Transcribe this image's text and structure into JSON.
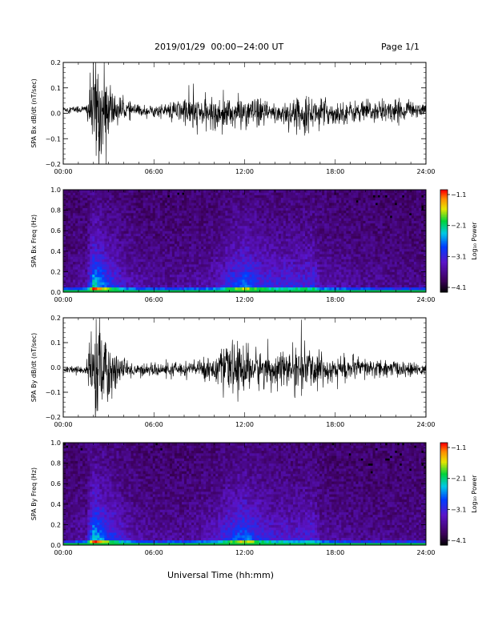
{
  "header": {
    "title": "2019/01/29  00:00−24:00 UT",
    "page": "Page 1/1"
  },
  "xlabel": "Universal Time (hh:mm)",
  "x_ticks": [
    "00:00",
    "06:00",
    "12:00",
    "18:00",
    "24:00"
  ],
  "chart_data": [
    {
      "type": "line",
      "ylabel": "SPA Bx dB/dt (nT/sec)",
      "x_range_hours": [
        0,
        24
      ],
      "ylim": [
        -0.2,
        0.2
      ],
      "y_ticks": [
        "0.2",
        "0.1",
        "0.0",
        "−0.1",
        "−0.2"
      ],
      "y_tick_values": [
        0.2,
        0.1,
        0.0,
        -0.1,
        -0.2
      ],
      "series": [
        {
          "x_hours": [
            0,
            1.5,
            2.0,
            2.3,
            2.6,
            3.0,
            3.5,
            4.0,
            5.0,
            6.0,
            7.0,
            8.0,
            8.5,
            9.0,
            10.0,
            11.0,
            12.0,
            13.0,
            14.0,
            15.0,
            16.0,
            17.0,
            18.0,
            19.0,
            20.0,
            21.0,
            22.0,
            23.0,
            24.0
          ],
          "center": [
            0.015,
            0.015,
            0.015,
            0.01,
            0.0,
            0.01,
            0.015,
            0.015,
            0.01,
            0.01,
            0.01,
            0.01,
            0.0,
            0.0,
            0.0,
            0.0,
            0.005,
            0.0,
            0.0,
            0.0,
            0.0,
            0.005,
            0.0,
            0.005,
            0.005,
            0.01,
            0.01,
            0.015,
            0.015
          ],
          "envelope": [
            0.012,
            0.02,
            0.2,
            0.25,
            0.2,
            0.12,
            0.07,
            0.04,
            0.025,
            0.025,
            0.03,
            0.06,
            0.08,
            0.06,
            0.06,
            0.07,
            0.06,
            0.06,
            0.05,
            0.06,
            0.07,
            0.06,
            0.05,
            0.045,
            0.05,
            0.05,
            0.045,
            0.04,
            0.025
          ]
        }
      ]
    },
    {
      "type": "heatmap",
      "ylabel": "SPA Bx Freq (Hz)",
      "x_range_hours": [
        0,
        24
      ],
      "ylim": [
        0.0,
        1.0
      ],
      "y_ticks": [
        "1.0",
        "0.8",
        "0.6",
        "0.4",
        "0.2",
        "0.0"
      ],
      "y_tick_values": [
        1.0,
        0.8,
        0.6,
        0.4,
        0.2,
        0.0
      ],
      "colorbar": {
        "label": "Log₁₀ Power",
        "ticks": [
          "−1.1",
          "−2.1",
          "−3.1",
          "−4.1"
        ],
        "range": [
          -4.1,
          -1.1
        ]
      },
      "activity_hours": [
        0,
        1.5,
        2.0,
        2.5,
        3.0,
        3.5,
        4.0,
        5.0,
        6.0,
        8.0,
        9.0,
        10.0,
        11.0,
        12.0,
        13.0,
        14.0,
        15.0,
        16.0,
        16.5,
        17.0,
        18.0,
        20.0,
        22.0,
        24.0
      ],
      "activity_level": [
        0.2,
        0.3,
        0.85,
        0.75,
        0.6,
        0.55,
        0.4,
        0.3,
        0.25,
        0.25,
        0.3,
        0.35,
        0.55,
        0.7,
        0.55,
        0.5,
        0.5,
        0.5,
        0.55,
        0.35,
        0.3,
        0.25,
        0.2,
        0.2
      ]
    },
    {
      "type": "line",
      "ylabel": "SPA By dB/dt (nT/sec)",
      "x_range_hours": [
        0,
        24
      ],
      "ylim": [
        -0.2,
        0.2
      ],
      "y_ticks": [
        "0.2",
        "0.1",
        "0.0",
        "−0.1",
        "−0.2"
      ],
      "y_tick_values": [
        0.2,
        0.1,
        0.0,
        -0.1,
        -0.2
      ],
      "series": [
        {
          "x_hours": [
            0,
            1.5,
            2.0,
            2.3,
            2.6,
            3.0,
            3.5,
            4.0,
            5.0,
            6.0,
            7.0,
            8.0,
            9.0,
            10.0,
            11.0,
            12.0,
            13.0,
            14.0,
            15.0,
            16.0,
            17.0,
            18.0,
            19.0,
            20.0,
            21.0,
            22.0,
            23.0,
            24.0
          ],
          "center": [
            -0.01,
            -0.01,
            -0.015,
            -0.02,
            -0.02,
            -0.01,
            -0.01,
            -0.01,
            -0.01,
            -0.01,
            -0.01,
            -0.005,
            -0.005,
            -0.005,
            -0.005,
            -0.005,
            -0.005,
            -0.005,
            -0.005,
            -0.005,
            -0.005,
            -0.005,
            -0.005,
            -0.005,
            -0.005,
            -0.005,
            -0.01,
            -0.01
          ],
          "envelope": [
            0.015,
            0.02,
            0.2,
            0.25,
            0.22,
            0.15,
            0.08,
            0.04,
            0.03,
            0.025,
            0.03,
            0.03,
            0.04,
            0.06,
            0.1,
            0.11,
            0.08,
            0.07,
            0.08,
            0.1,
            0.07,
            0.06,
            0.05,
            0.045,
            0.04,
            0.035,
            0.03,
            0.02
          ]
        }
      ]
    },
    {
      "type": "heatmap",
      "ylabel": "SPA By Freq (Hz)",
      "x_range_hours": [
        0,
        24
      ],
      "ylim": [
        0.0,
        1.0
      ],
      "y_ticks": [
        "1.0",
        "0.8",
        "0.6",
        "0.4",
        "0.2",
        "0.0"
      ],
      "y_tick_values": [
        1.0,
        0.8,
        0.6,
        0.4,
        0.2,
        0.0
      ],
      "colorbar": {
        "label": "Log₁₀ Power",
        "ticks": [
          "−1.1",
          "−2.1",
          "−3.1",
          "−4.1"
        ],
        "range": [
          -4.1,
          -1.1
        ]
      },
      "activity_hours": [
        0,
        1.5,
        2.0,
        2.5,
        3.0,
        3.5,
        4.0,
        5.0,
        6.0,
        8.0,
        9.0,
        10.0,
        11.0,
        12.0,
        13.0,
        14.0,
        15.0,
        16.0,
        16.5,
        17.0,
        18.0,
        20.0,
        22.0,
        24.0
      ],
      "activity_level": [
        0.2,
        0.3,
        0.85,
        0.75,
        0.6,
        0.55,
        0.4,
        0.3,
        0.25,
        0.25,
        0.3,
        0.4,
        0.6,
        0.7,
        0.55,
        0.45,
        0.45,
        0.45,
        0.5,
        0.3,
        0.25,
        0.2,
        0.2,
        0.2
      ]
    }
  ]
}
